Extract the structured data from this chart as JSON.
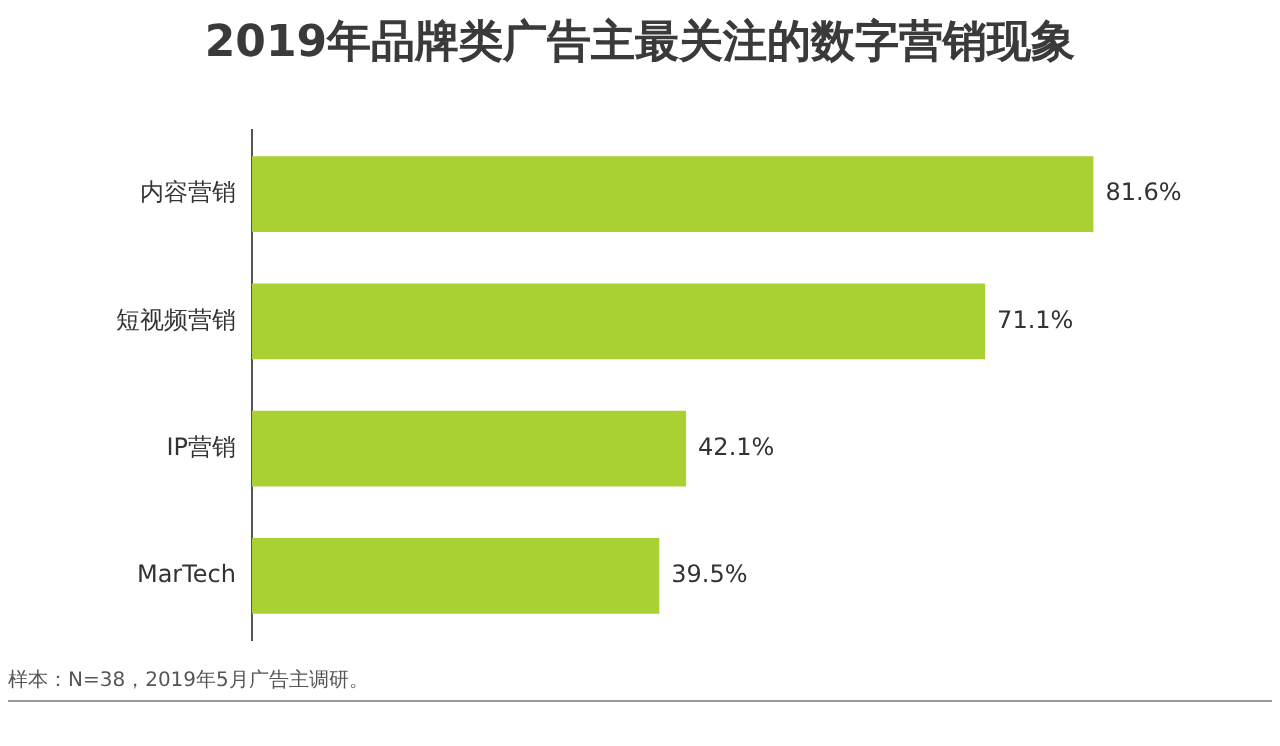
{
  "chart_data": {
    "type": "bar",
    "orientation": "horizontal",
    "title": "2019年品牌类广告主最关注的数字营销现象",
    "categories": [
      "内容营销",
      "短视频营销",
      "IP营销",
      "MarTech"
    ],
    "values": [
      81.6,
      71.1,
      42.1,
      39.5
    ],
    "value_labels": [
      "81.6%",
      "71.1%",
      "42.1%",
      "39.5%"
    ],
    "color": "#a9d134",
    "grid": false,
    "legend": false,
    "annotations": [
      "样本：N=38，2019年5月广告主调研。"
    ]
  }
}
